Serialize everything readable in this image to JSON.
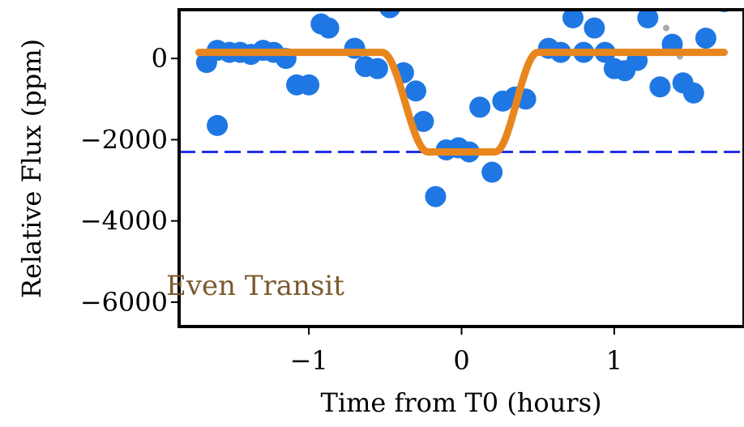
{
  "chart_data": {
    "type": "scatter",
    "xlabel": "Time from T0 (hours)",
    "ylabel": "Relative Flux (ppm)",
    "xlim": [
      -1.85,
      1.85
    ],
    "ylim": [
      -6600,
      1200
    ],
    "xticks": [
      -1,
      0,
      1
    ],
    "xtick_labels": [
      "−1",
      "0",
      "1"
    ],
    "yticks": [
      0,
      -2000,
      -4000,
      -6000
    ],
    "ytick_labels": [
      "0",
      "−2000",
      "−4000",
      "−6000"
    ],
    "annotation": {
      "text": "Even Transit",
      "color": "#7a5a2e"
    },
    "colors": {
      "points": "#1f77e4",
      "model": "#e8861e",
      "depth_line": "#1f2fe8",
      "gray_points": "#aaaaaa"
    },
    "depth_line_y": -2300,
    "points": [
      {
        "x": -1.67,
        "y": -100
      },
      {
        "x": -1.6,
        "y": 200
      },
      {
        "x": -1.52,
        "y": 150
      },
      {
        "x": -1.45,
        "y": 150
      },
      {
        "x": -1.38,
        "y": 100
      },
      {
        "x": -1.3,
        "y": 200
      },
      {
        "x": -1.23,
        "y": 150
      },
      {
        "x": -1.15,
        "y": 0
      },
      {
        "x": -1.6,
        "y": -1650
      },
      {
        "x": -1.08,
        "y": -650
      },
      {
        "x": -1.0,
        "y": -650
      },
      {
        "x": -0.92,
        "y": 850
      },
      {
        "x": -0.87,
        "y": 750
      },
      {
        "x": -0.7,
        "y": 250
      },
      {
        "x": -0.63,
        "y": -200
      },
      {
        "x": -0.55,
        "y": -250
      },
      {
        "x": -0.47,
        "y": 1250
      },
      {
        "x": -0.38,
        "y": -350
      },
      {
        "x": -0.3,
        "y": -800
      },
      {
        "x": -0.25,
        "y": -1550
      },
      {
        "x": -0.17,
        "y": -3400
      },
      {
        "x": -0.1,
        "y": -2250
      },
      {
        "x": -0.02,
        "y": -2200
      },
      {
        "x": 0.05,
        "y": -2300
      },
      {
        "x": 0.12,
        "y": -1200
      },
      {
        "x": 0.2,
        "y": -2800
      },
      {
        "x": 0.27,
        "y": -1050
      },
      {
        "x": 0.35,
        "y": -950
      },
      {
        "x": 0.42,
        "y": -1000
      },
      {
        "x": 0.57,
        "y": 250
      },
      {
        "x": 0.65,
        "y": 150
      },
      {
        "x": 0.73,
        "y": 1000
      },
      {
        "x": 0.8,
        "y": 150
      },
      {
        "x": 0.87,
        "y": 750
      },
      {
        "x": 0.94,
        "y": 150
      },
      {
        "x": 1.0,
        "y": -250
      },
      {
        "x": 1.07,
        "y": -300
      },
      {
        "x": 1.15,
        "y": -50
      },
      {
        "x": 1.22,
        "y": 1000
      },
      {
        "x": 1.3,
        "y": -700
      },
      {
        "x": 1.38,
        "y": 350
      },
      {
        "x": 1.45,
        "y": -600
      },
      {
        "x": 1.52,
        "y": -850
      },
      {
        "x": 1.6,
        "y": 500
      },
      {
        "x": 1.72,
        "y": 1400
      }
    ],
    "gray_points": [
      {
        "x": 1.34,
        "y": 750
      },
      {
        "x": 1.43,
        "y": 50
      }
    ],
    "model": {
      "baseline": 150,
      "depth": -2300,
      "t_ingress_start": -0.52,
      "t_ingress_end": -0.22,
      "t_egress_start": 0.22,
      "t_egress_end": 0.5,
      "x_start": -1.72,
      "x_end": 1.72
    }
  }
}
